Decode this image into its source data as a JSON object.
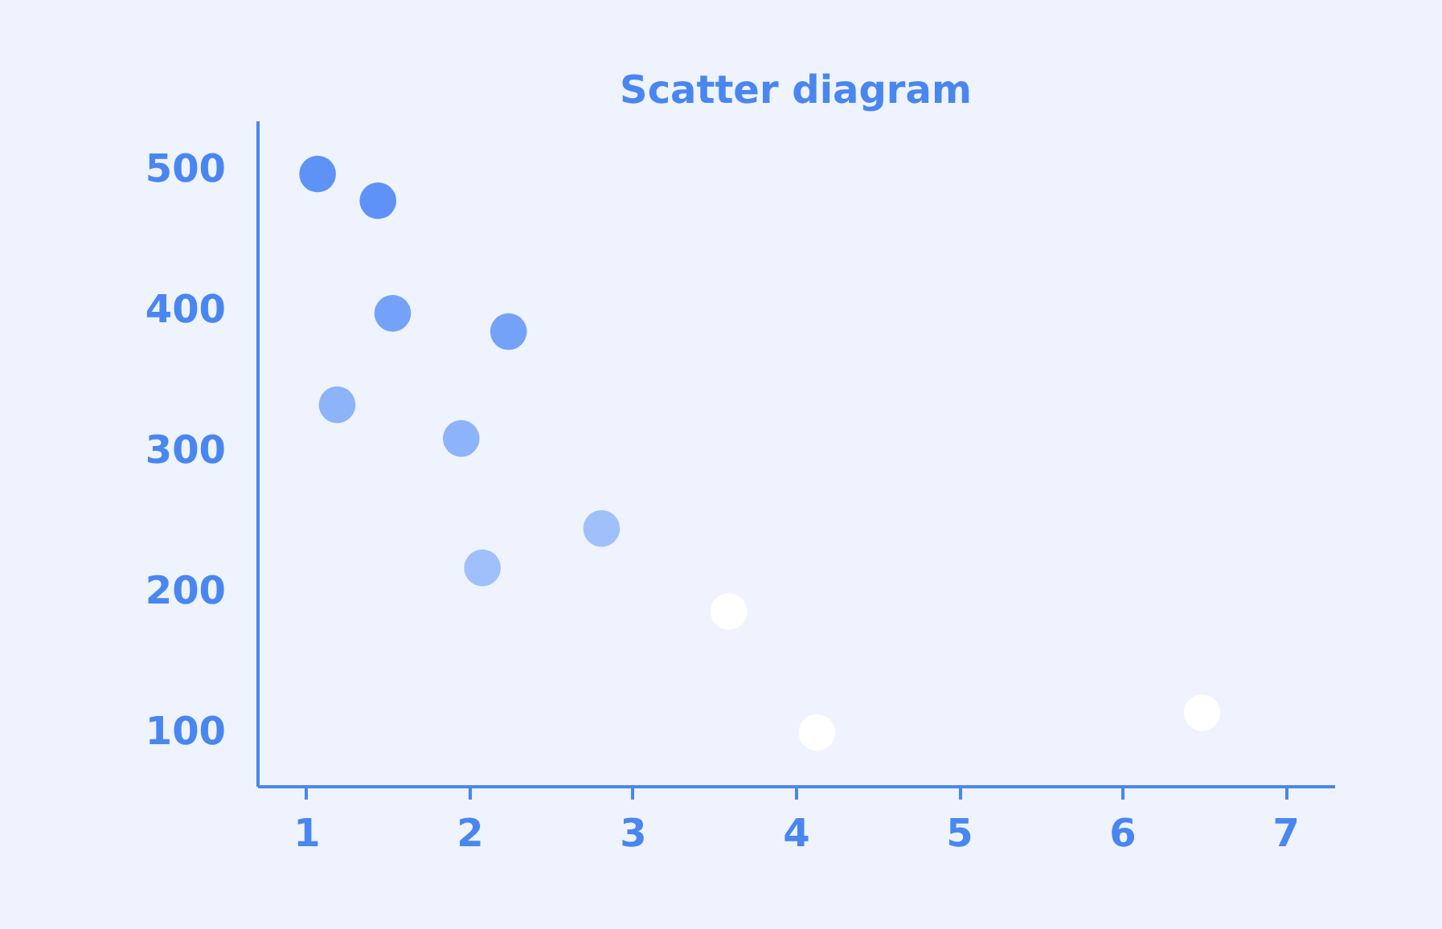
{
  "chart_data": {
    "type": "scatter",
    "title": "Scatter diagram",
    "x": [
      1.07,
      1.44,
      1.53,
      2.24,
      1.19,
      1.95,
      2.81,
      2.08,
      3.59,
      4.13,
      6.49
    ],
    "values": [
      497,
      478,
      398,
      385,
      333,
      309,
      245,
      217,
      186,
      100,
      114
    ],
    "colors": [
      "#5e92f7",
      "#5e92f7",
      "#74a2f8",
      "#74a2f8",
      "#8db3f9",
      "#8db3f9",
      "#9fc0fa",
      "#9fc0fa",
      "#ffffff",
      "#ffffff",
      "#ffffff"
    ],
    "xlim": [
      0.7,
      7.3
    ],
    "xticks": [
      1,
      2,
      3,
      4,
      5,
      6,
      7
    ],
    "ylim": [
      62,
      535
    ],
    "yticks": [
      100,
      200,
      300,
      400,
      500
    ],
    "marker": "circle",
    "grid": false,
    "legend": false
  }
}
